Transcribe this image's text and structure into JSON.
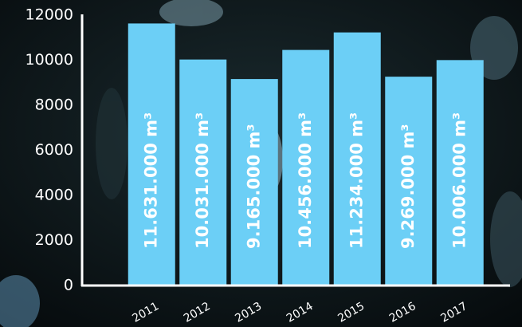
{
  "chart_data": {
    "type": "bar",
    "categories": [
      "2011",
      "2012",
      "2013",
      "2014",
      "2015",
      "2016",
      "2017"
    ],
    "values": [
      11631,
      10031,
      9165,
      10456,
      11234,
      9269,
      10006
    ],
    "value_labels": [
      "11.631.000 m³",
      "10.031.000 m³",
      "9.165.000 m³",
      "10.456.000 m³",
      "11.234.000 m³",
      "9.269.000 m³",
      "10.006.000 m³"
    ],
    "color": "#6ccff6",
    "ylim": [
      0,
      12000
    ],
    "yticks": [
      0,
      2000,
      4000,
      6000,
      8000,
      10000,
      12000
    ],
    "grid": false
  }
}
